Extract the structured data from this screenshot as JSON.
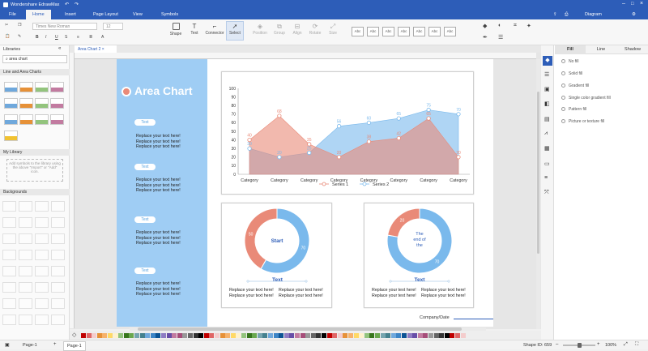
{
  "app": {
    "title": "Wondershare EdrawMax"
  },
  "menu": {
    "tabs": [
      "File",
      "Home",
      "Insert",
      "Page Layout",
      "View",
      "Symbols"
    ],
    "active": "Home",
    "user": "Diagram"
  },
  "ribbon": {
    "font_name": "Times New Roman",
    "font_size": "12",
    "tools": [
      "Shape",
      "Text",
      "Connector",
      "Select",
      "Position",
      "Group",
      "Align",
      "Rotate",
      "Size"
    ],
    "style_labels": [
      "Abc",
      "Abc",
      "Abc",
      "Abc",
      "Abc",
      "Abc",
      "Abc"
    ]
  },
  "left": {
    "title": "Libraries",
    "search_value": "area chart",
    "section1": "Line and Area Charts",
    "section2": "My Library",
    "my_library_hint": "Add symbols to the library using the above \"Import\" or \"Add\" icon.",
    "section3": "Backgrounds"
  },
  "doc": {
    "tab": "Area Chart 2",
    "heading": "Area Chart",
    "pill_label": "Text",
    "replace": "Replace your text here!",
    "company": "Company/Date"
  },
  "donut1": {
    "center": "Start",
    "values": [
      50,
      70
    ],
    "title": "Text"
  },
  "donut2": {
    "center_lines": [
      "The",
      "end of",
      "the"
    ],
    "values": [
      20,
      70
    ],
    "title": "Text"
  },
  "right": {
    "tabs": [
      "Fill",
      "Line",
      "Shadow"
    ],
    "active": "Fill",
    "options": [
      "No fill",
      "Solid fill",
      "Gradient fill",
      "Single color gradient fill",
      "Pattern fill",
      "Picture or texture fill"
    ]
  },
  "status": {
    "page": "Page-1",
    "page_tab": "Page-1",
    "shape_id": "Shape ID: 659",
    "zoom": "100%"
  },
  "colors": {
    "blue": "#7ab9ec",
    "salmon": "#e98a78",
    "accent": "#2d5db8"
  },
  "chart_data": {
    "type": "area",
    "categories": [
      "Category",
      "Category",
      "Category",
      "Category",
      "Category",
      "Category",
      "Category",
      "Category"
    ],
    "series": [
      {
        "name": "Series 1",
        "values": [
          40,
          68,
          35,
          20,
          38,
          42,
          65,
          20
        ],
        "labels": [
          "40",
          "68",
          "35",
          "20",
          "38",
          "42",
          "65",
          "20"
        ]
      },
      {
        "name": "Series 2",
        "values": [
          30,
          20,
          25,
          56,
          60,
          65,
          75,
          70
        ],
        "labels": [
          "30",
          "20",
          "25",
          "56",
          "60",
          "65",
          "75",
          "70"
        ]
      }
    ],
    "ylim": [
      0,
      100
    ],
    "yticks": [
      "0",
      "10",
      "20",
      "30",
      "40",
      "50",
      "60",
      "70",
      "80",
      "90",
      "100"
    ],
    "legend": "bottom",
    "grid": false
  }
}
